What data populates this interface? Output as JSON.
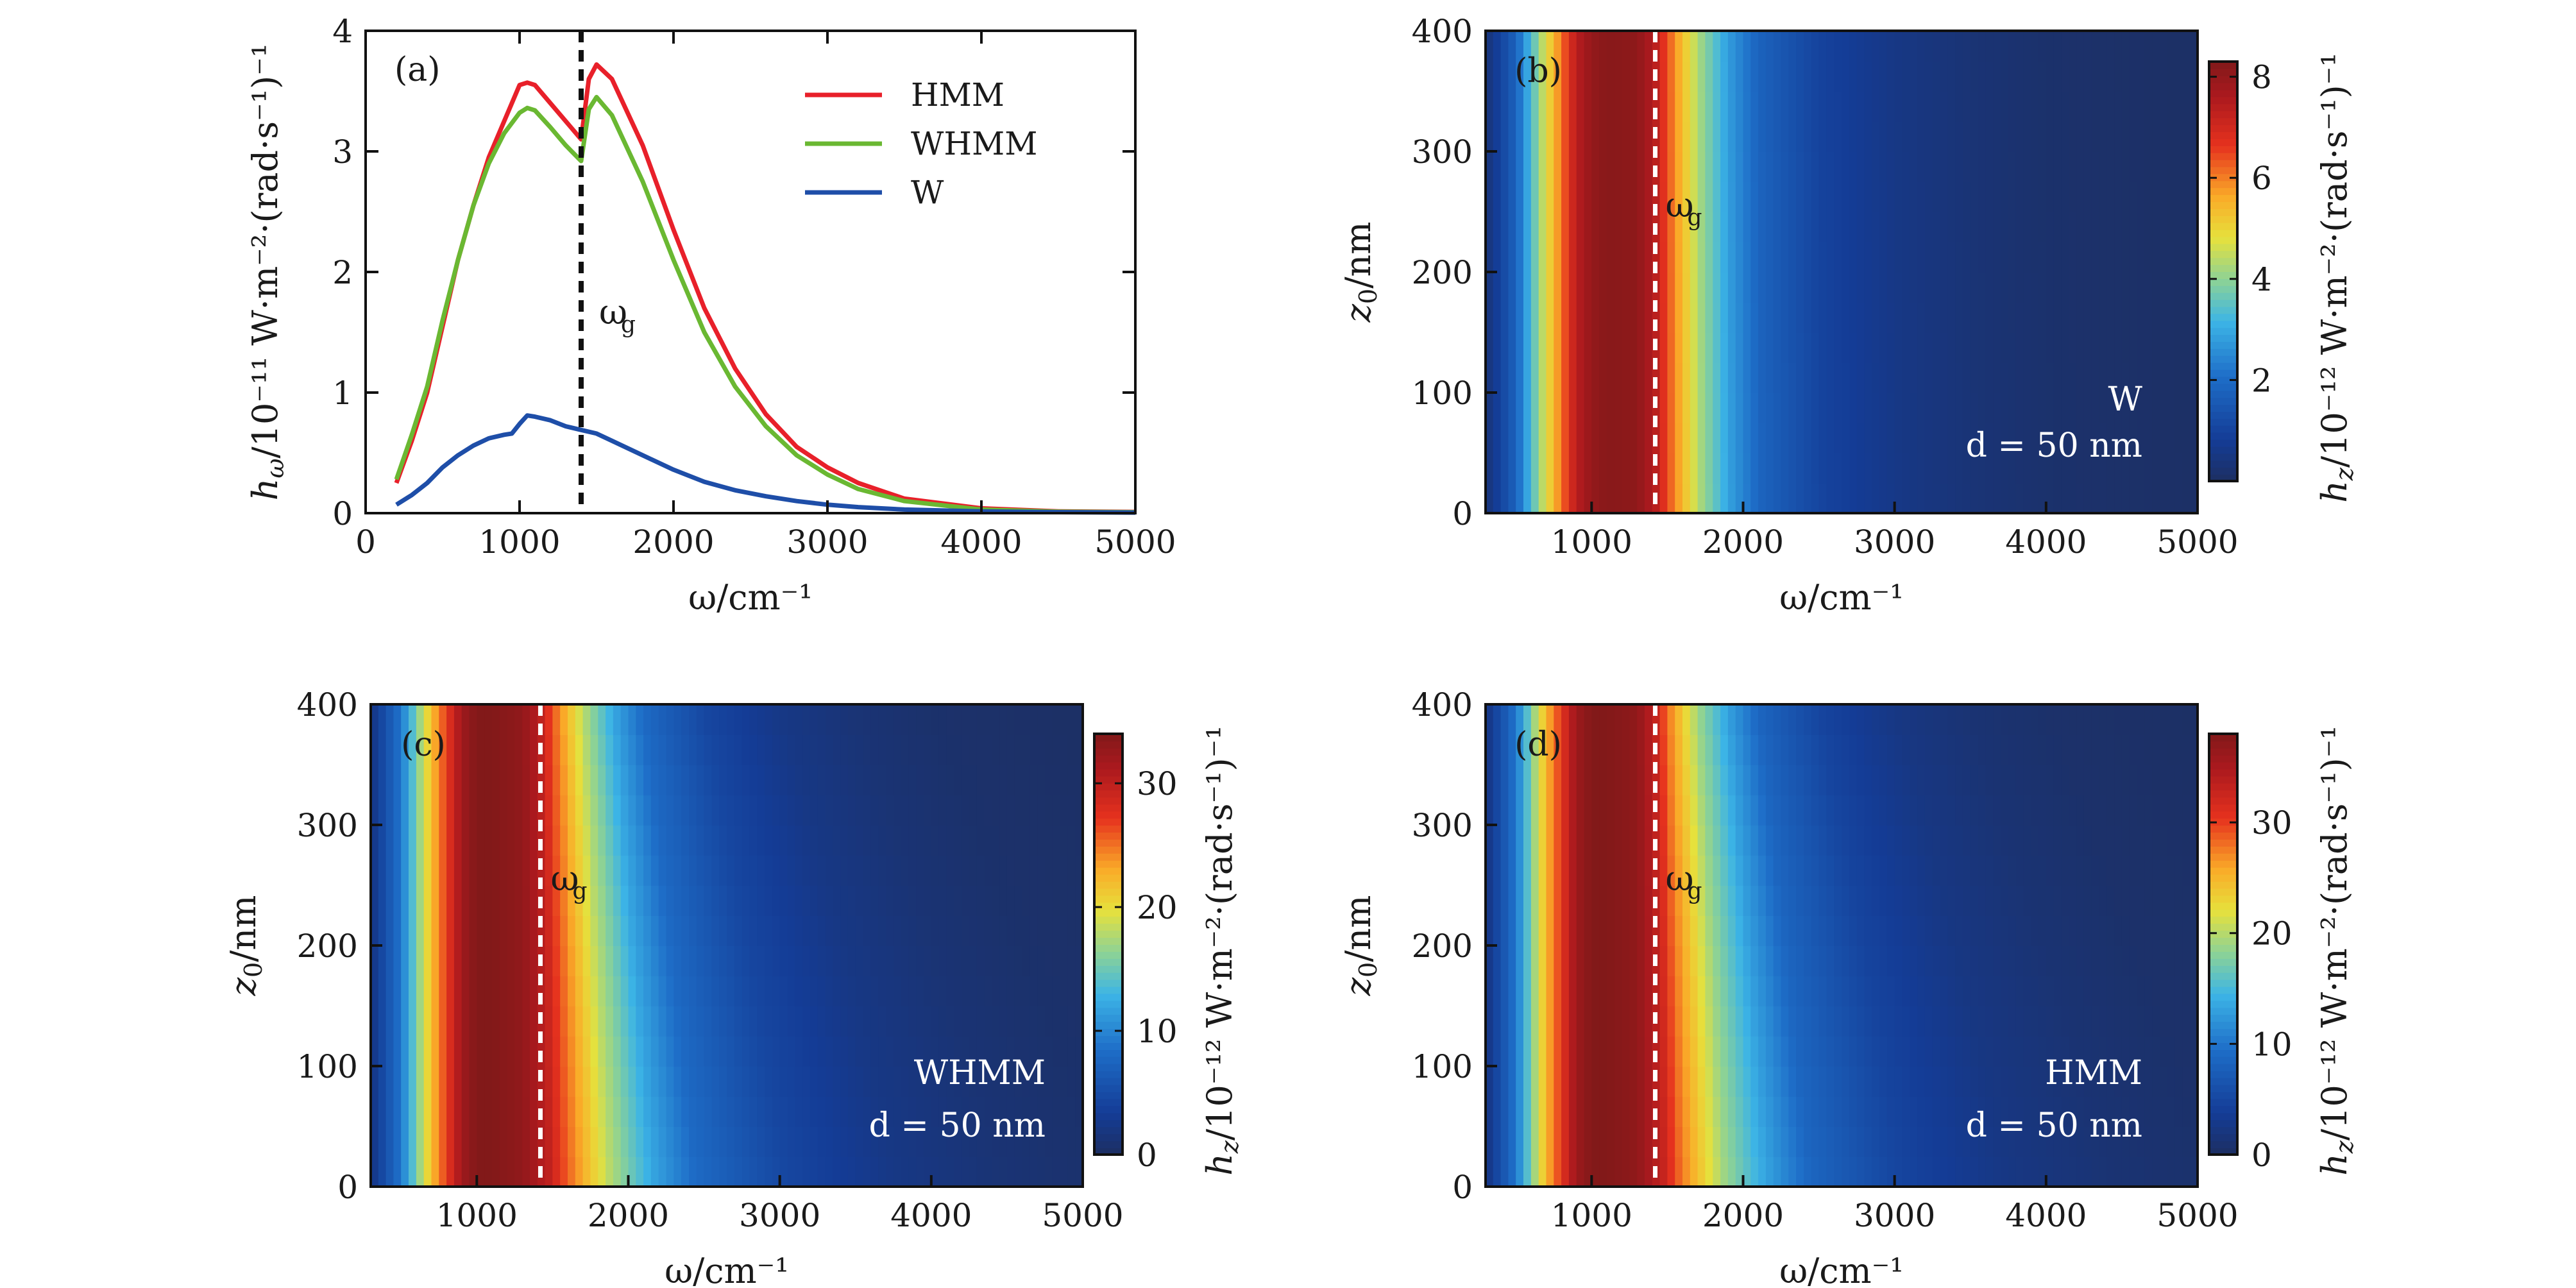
{
  "figure": {
    "panels": [
      {
        "id": "a",
        "label": "(a)",
        "ylabel_main": "h",
        "ylabel_sub": "ω",
        "ylabel_unit": "/10⁻¹¹ W·m⁻²·(rad·s⁻¹)⁻¹",
        "xlabel": "ω/cm⁻¹",
        "gap_marker": "ω",
        "gap_marker_sub": "g"
      },
      {
        "id": "b",
        "label": "(b)",
        "ylabel_main": "z",
        "ylabel_sub": "0",
        "ylabel_unit": "/nm",
        "xlabel": "ω/cm⁻¹",
        "gap_marker": "ω",
        "gap_marker_sub": "g",
        "material": "W",
        "thickness": "d = 50 nm",
        "colorbar_label": "h",
        "colorbar_sub": "z",
        "colorbar_unit": "/10⁻¹² W·m⁻²·(rad·s⁻¹)⁻¹"
      },
      {
        "id": "c",
        "label": "(c)",
        "ylabel_main": "z",
        "ylabel_sub": "0",
        "ylabel_unit": "/nm",
        "xlabel": "ω/cm⁻¹",
        "gap_marker": "ω",
        "gap_marker_sub": "g",
        "material": "WHMM",
        "thickness": "d = 50 nm",
        "colorbar_label": "h",
        "colorbar_sub": "z",
        "colorbar_unit": "/10⁻¹² W·m⁻²·(rad·s⁻¹)⁻¹"
      },
      {
        "id": "d",
        "label": "(d)",
        "ylabel_main": "z",
        "ylabel_sub": "0",
        "ylabel_unit": "/nm",
        "xlabel": "ω/cm⁻¹",
        "gap_marker": "ω",
        "gap_marker_sub": "g",
        "material": "HMM",
        "thickness": "d = 50 nm",
        "colorbar_label": "h",
        "colorbar_sub": "z",
        "colorbar_unit": "/10⁻¹² W·m⁻²·(rad·s⁻¹)⁻¹"
      }
    ]
  },
  "chart_data": [
    {
      "type": "line",
      "panel": "a",
      "xlabel": "ω/cm⁻¹",
      "ylabel": "hω/10⁻¹¹ W·m⁻²·(rad·s⁻¹)⁻¹",
      "xlim": [
        0,
        5000
      ],
      "ylim": [
        0,
        4
      ],
      "xticks": [
        0,
        1000,
        2000,
        3000,
        4000,
        5000
      ],
      "yticks": [
        0,
        1,
        2,
        3,
        4
      ],
      "gap_frequency": 1400,
      "legend_position": "top-right",
      "series": [
        {
          "name": "HMM",
          "color": "#e8202a",
          "x": [
            200,
            300,
            400,
            500,
            600,
            700,
            800,
            900,
            1000,
            1050,
            1100,
            1200,
            1300,
            1400,
            1450,
            1500,
            1600,
            1800,
            2000,
            2200,
            2400,
            2600,
            2800,
            3000,
            3200,
            3500,
            4000,
            4500,
            5000
          ],
          "y": [
            0.25,
            0.6,
            1.0,
            1.55,
            2.1,
            2.55,
            2.95,
            3.25,
            3.55,
            3.57,
            3.55,
            3.4,
            3.25,
            3.1,
            3.6,
            3.72,
            3.6,
            3.05,
            2.35,
            1.7,
            1.2,
            0.82,
            0.55,
            0.38,
            0.25,
            0.12,
            0.04,
            0.015,
            0.01
          ]
        },
        {
          "name": "WHMM",
          "color": "#6ab832",
          "x": [
            200,
            300,
            400,
            500,
            600,
            700,
            800,
            900,
            1000,
            1050,
            1100,
            1200,
            1300,
            1400,
            1450,
            1500,
            1600,
            1800,
            2000,
            2200,
            2400,
            2600,
            2800,
            3000,
            3200,
            3500,
            4000,
            4500,
            5000
          ],
          "y": [
            0.28,
            0.65,
            1.05,
            1.6,
            2.1,
            2.55,
            2.9,
            3.15,
            3.32,
            3.36,
            3.34,
            3.2,
            3.05,
            2.92,
            3.35,
            3.45,
            3.3,
            2.75,
            2.1,
            1.5,
            1.05,
            0.72,
            0.48,
            0.32,
            0.2,
            0.1,
            0.03,
            0.012,
            0.008
          ]
        },
        {
          "name": "W",
          "color": "#1e4ea8",
          "x": [
            200,
            300,
            400,
            500,
            600,
            700,
            800,
            900,
            950,
            1000,
            1050,
            1100,
            1200,
            1300,
            1400,
            1500,
            1600,
            1800,
            2000,
            2200,
            2400,
            2600,
            2800,
            3000,
            3200,
            3500,
            4000,
            4500,
            5000
          ],
          "y": [
            0.07,
            0.15,
            0.25,
            0.38,
            0.48,
            0.56,
            0.62,
            0.65,
            0.66,
            0.74,
            0.81,
            0.8,
            0.77,
            0.72,
            0.69,
            0.66,
            0.6,
            0.48,
            0.36,
            0.26,
            0.19,
            0.14,
            0.1,
            0.07,
            0.05,
            0.03,
            0.015,
            0.008,
            0.005
          ]
        }
      ]
    },
    {
      "type": "heatmap",
      "panel": "b",
      "xlabel": "ω/cm⁻¹",
      "ylabel": "z0/nm",
      "xlim": [
        300,
        5000
      ],
      "ylim": [
        0,
        400
      ],
      "xticks": [
        1000,
        2000,
        3000,
        4000,
        5000
      ],
      "yticks": [
        0,
        100,
        200,
        300,
        400
      ],
      "gap_frequency": 1420,
      "colorbar_range": [
        0,
        8.3
      ],
      "colorbar_ticks": [
        2,
        4,
        6,
        8
      ],
      "profile_x": [
        300,
        500,
        700,
        900,
        1000,
        1100,
        1300,
        1420,
        1500,
        1700,
        1900,
        2100,
        2500,
        3000,
        3500,
        4000,
        5000
      ],
      "profile_value": [
        0.3,
        1.8,
        4.8,
        7.4,
        8.0,
        8.2,
        8.1,
        7.4,
        6.4,
        4.3,
        2.8,
        1.8,
        1.0,
        0.55,
        0.3,
        0.15,
        0.05
      ],
      "z_decay_at_top": 0.03
    },
    {
      "type": "heatmap",
      "panel": "c",
      "xlabel": "ω/cm⁻¹",
      "ylabel": "z0/nm",
      "xlim": [
        300,
        5000
      ],
      "ylim": [
        0,
        400
      ],
      "xticks": [
        1000,
        2000,
        3000,
        4000,
        5000
      ],
      "yticks": [
        0,
        100,
        200,
        300,
        400
      ],
      "gap_frequency": 1420,
      "colorbar_range": [
        0,
        34
      ],
      "colorbar_ticks": [
        0,
        10,
        20,
        30
      ],
      "profile_x": [
        300,
        500,
        700,
        900,
        1000,
        1100,
        1300,
        1420,
        1500,
        1700,
        1900,
        2100,
        2500,
        3000,
        3500,
        4000,
        5000
      ],
      "profile_value": [
        2,
        9,
        22,
        32,
        34,
        34,
        33,
        30,
        26,
        18,
        12,
        8,
        4.5,
        2.3,
        1.2,
        0.6,
        0.2
      ],
      "z_decay_at_top": 0.45
    },
    {
      "type": "heatmap",
      "panel": "d",
      "xlabel": "ω/cm⁻¹",
      "ylabel": "z0/nm",
      "xlim": [
        300,
        5000
      ],
      "ylim": [
        0,
        400
      ],
      "xticks": [
        1000,
        2000,
        3000,
        4000,
        5000
      ],
      "yticks": [
        0,
        100,
        200,
        300,
        400
      ],
      "gap_frequency": 1420,
      "colorbar_range": [
        0,
        38
      ],
      "colorbar_ticks": [
        0,
        10,
        20,
        30
      ],
      "profile_x": [
        300,
        500,
        700,
        900,
        1000,
        1100,
        1300,
        1420,
        1500,
        1700,
        1900,
        2100,
        2500,
        3000,
        3500,
        4000,
        5000
      ],
      "profile_value": [
        2,
        10,
        25,
        36,
        38,
        38,
        37,
        33,
        28,
        19,
        13,
        8.5,
        4.8,
        2.4,
        1.2,
        0.6,
        0.2
      ],
      "z_decay_at_top": 0.45
    }
  ]
}
